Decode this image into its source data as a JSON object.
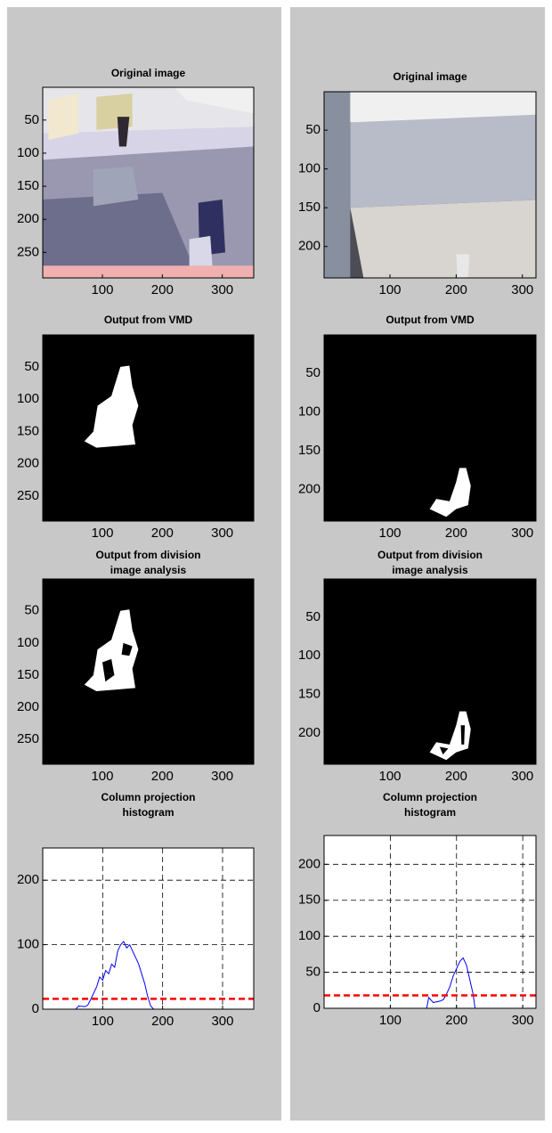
{
  "chart_data": [
    {
      "type": "image",
      "title": [
        "Original image"
      ],
      "xlim": [
        0.5,
        352.5
      ],
      "ylim": [
        0.5,
        288.5
      ],
      "xticks": [
        100,
        200,
        300
      ],
      "yticks": [
        50,
        100,
        150,
        200,
        250
      ]
    },
    {
      "type": "image",
      "title": [
        "Output from VMD"
      ],
      "xlim": [
        0.5,
        352.5
      ],
      "ylim": [
        0.5,
        288.5
      ],
      "xticks": [
        100,
        200,
        300
      ],
      "yticks": [
        50,
        100,
        150,
        200,
        250
      ]
    },
    {
      "type": "image",
      "title": [
        "Output from division",
        "image analysis"
      ],
      "xlim": [
        0.5,
        352.5
      ],
      "ylim": [
        0.5,
        288.5
      ],
      "xticks": [
        100,
        200,
        300
      ],
      "yticks": [
        50,
        100,
        150,
        200,
        250
      ]
    },
    {
      "type": "line",
      "title": [
        "Column projection",
        "histogram"
      ],
      "xlim": [
        0,
        352
      ],
      "ylim": [
        0,
        250
      ],
      "xticks": [
        100,
        200,
        300
      ],
      "yticks": [
        0,
        100,
        200
      ],
      "grid": true,
      "x": [
        1,
        55,
        60,
        70,
        75,
        80,
        85,
        90,
        95,
        100,
        105,
        110,
        115,
        120,
        125,
        130,
        135,
        140,
        145,
        150,
        155,
        160,
        165,
        170,
        175,
        180,
        185,
        352
      ],
      "series": [
        {
          "color": "#0000ff",
          "values": [
            0,
            0,
            5,
            4,
            6,
            15,
            25,
            35,
            50,
            45,
            60,
            55,
            70,
            65,
            90,
            100,
            105,
            95,
            100,
            90,
            80,
            70,
            55,
            40,
            20,
            5,
            0,
            0
          ]
        }
      ],
      "hlines": [
        {
          "value": 16,
          "color": "#ff0000"
        }
      ]
    },
    {
      "type": "image",
      "title": [
        "Original image"
      ],
      "xlim": [
        0.5,
        320.5
      ],
      "ylim": [
        0.5,
        240.5
      ],
      "xticks": [
        100,
        200,
        300
      ],
      "yticks": [
        50,
        100,
        150,
        200
      ]
    },
    {
      "type": "image",
      "title": [
        "Output from VMD"
      ],
      "xlim": [
        0.5,
        320.5
      ],
      "ylim": [
        0.5,
        240.5
      ],
      "xticks": [
        100,
        200,
        300
      ],
      "yticks": [
        50,
        100,
        150,
        200
      ]
    },
    {
      "type": "image",
      "title": [
        "Output from division",
        "image analysis"
      ],
      "xlim": [
        0.5,
        320.5
      ],
      "ylim": [
        0.5,
        240.5
      ],
      "xticks": [
        100,
        200,
        300
      ],
      "yticks": [
        50,
        100,
        150,
        200
      ]
    },
    {
      "type": "line",
      "title": [
        "Column projection",
        "histogram"
      ],
      "xlim": [
        0,
        320
      ],
      "ylim": [
        0,
        240
      ],
      "xticks": [
        100,
        200,
        300
      ],
      "yticks": [
        0,
        50,
        100,
        150,
        200
      ],
      "grid": true,
      "x": [
        1,
        155,
        158,
        165,
        175,
        180,
        185,
        190,
        195,
        200,
        205,
        210,
        215,
        220,
        225,
        228,
        320
      ],
      "series": [
        {
          "color": "#0000ff",
          "values": [
            0,
            0,
            15,
            8,
            10,
            12,
            20,
            30,
            45,
            55,
            65,
            70,
            60,
            40,
            20,
            0,
            0
          ]
        }
      ],
      "hlines": [
        {
          "value": 18,
          "color": "#ff0000"
        }
      ]
    }
  ]
}
